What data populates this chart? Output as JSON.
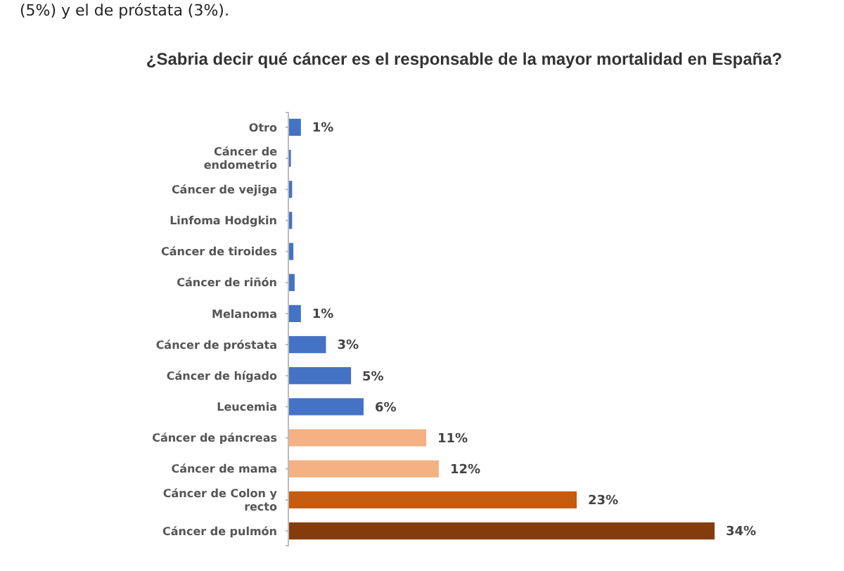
{
  "chart_data": {
    "type": "bar",
    "orientation": "horizontal",
    "xlim": [
      0,
      34
    ],
    "title": "¿Sabria decir qué cáncer es el responsable de la mayor mortalidad en España?",
    "annotations": [
      "(5%) y el de próstata (3%)."
    ],
    "categories": [
      "Otro",
      "Cáncer de endometrio",
      "Cáncer de vejiga",
      "Linfoma Hodgkin",
      "Cáncer de tiroides",
      "Cáncer de riñón",
      "Melanoma",
      "Cáncer de próstata",
      "Cáncer de hígado",
      "Leucemia",
      "Cáncer de páncreas",
      "Cáncer de mama",
      "Cáncer de Colon y recto",
      "Cáncer de pulmón"
    ],
    "values": [
      1,
      0.2,
      0.3,
      0.3,
      0.4,
      0.5,
      1,
      3,
      5,
      6,
      11,
      12,
      23,
      34
    ],
    "value_labels": [
      "1%",
      null,
      null,
      null,
      null,
      null,
      "1%",
      "3%",
      "5%",
      "6%",
      "11%",
      "12%",
      "23%",
      "34%"
    ],
    "colors": [
      "#4472c4",
      "#4472c4",
      "#4472c4",
      "#4472c4",
      "#4472c4",
      "#4472c4",
      "#4472c4",
      "#4472c4",
      "#4472c4",
      "#4472c4",
      "#f4b183",
      "#f4b183",
      "#c55a11",
      "#843c0c"
    ]
  }
}
